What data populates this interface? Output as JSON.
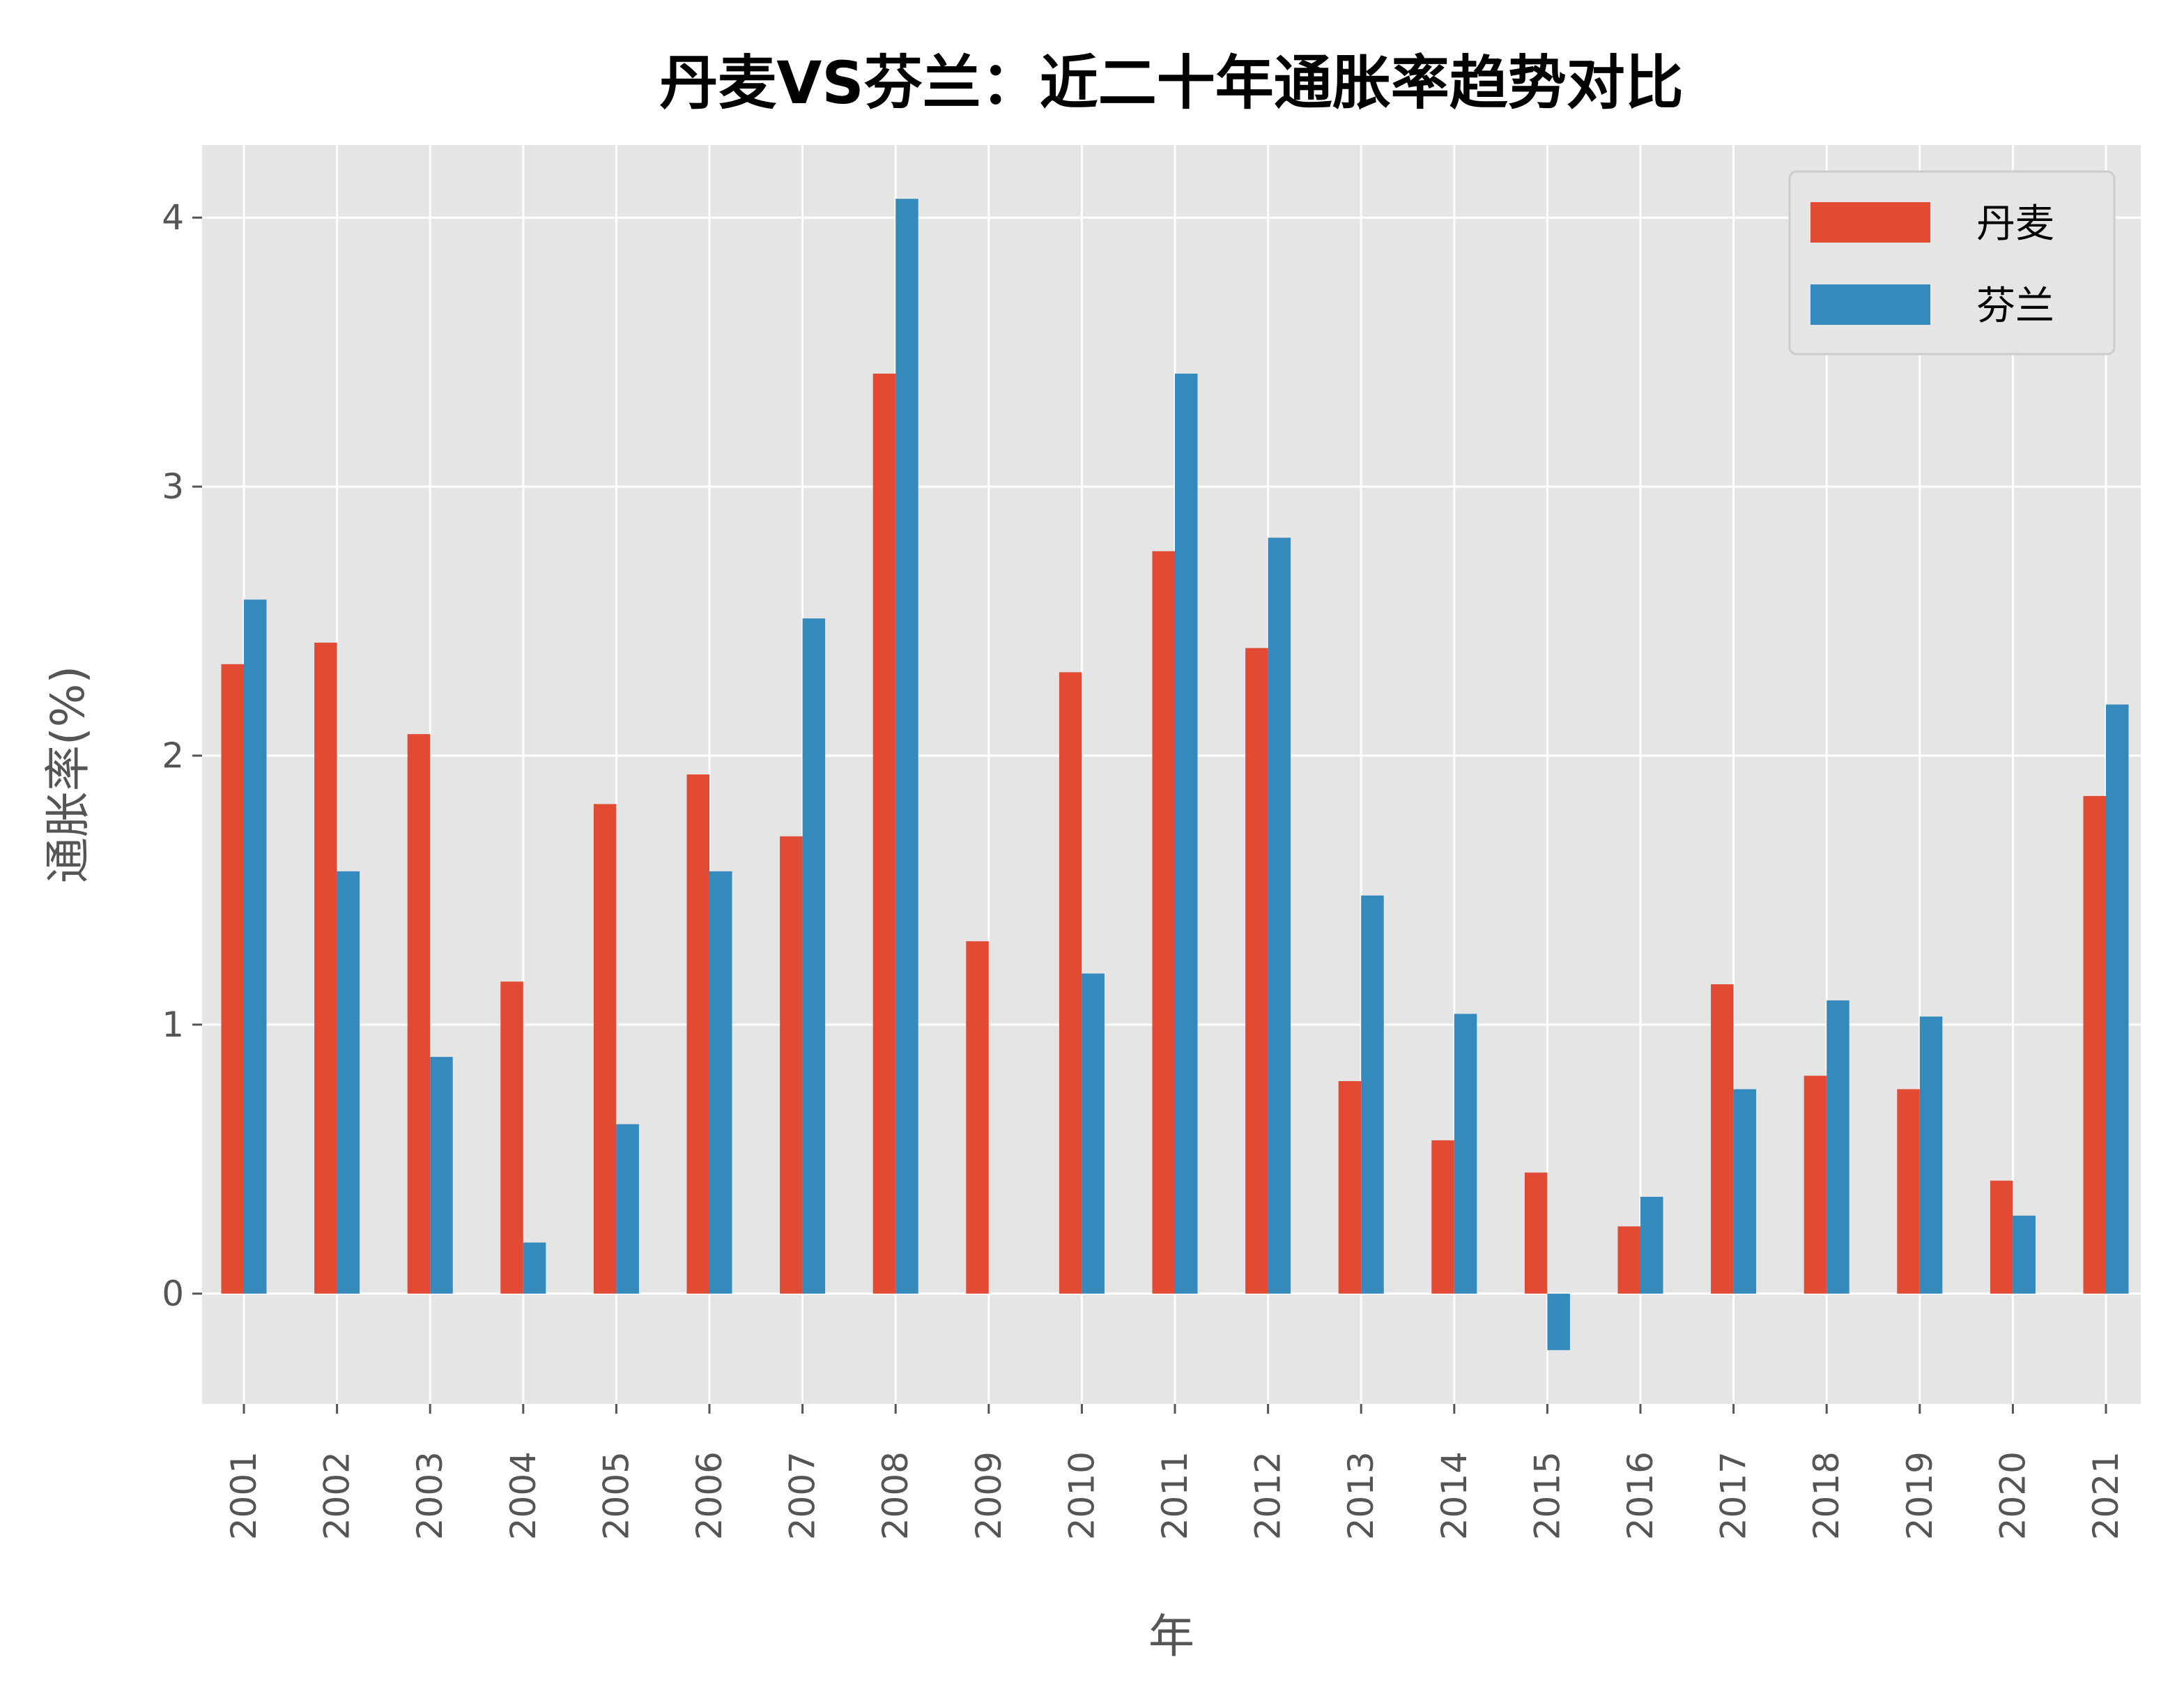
{
  "chart_data": {
    "type": "bar",
    "title": "丹麦VS芬兰：近二十年通胀率趋势对比",
    "xlabel": "年",
    "ylabel": "通胀率(%)",
    "categories": [
      "2001",
      "2002",
      "2003",
      "2004",
      "2005",
      "2006",
      "2007",
      "2008",
      "2009",
      "2010",
      "2011",
      "2012",
      "2013",
      "2014",
      "2015",
      "2016",
      "2017",
      "2018",
      "2019",
      "2020",
      "2021"
    ],
    "series": [
      {
        "name": "丹麦",
        "color": "#E24A33",
        "values": [
          2.34,
          2.42,
          2.08,
          1.16,
          1.82,
          1.93,
          1.7,
          3.42,
          1.31,
          2.31,
          2.76,
          2.4,
          0.79,
          0.57,
          0.45,
          0.25,
          1.15,
          0.81,
          0.76,
          0.42,
          1.85
        ]
      },
      {
        "name": "芬兰",
        "color": "#348ABD",
        "values": [
          2.58,
          1.57,
          0.88,
          0.19,
          0.63,
          1.57,
          2.51,
          4.07,
          0.0,
          1.19,
          3.42,
          2.81,
          1.48,
          1.04,
          -0.21,
          0.36,
          0.76,
          1.09,
          1.03,
          0.29,
          2.19
        ]
      }
    ],
    "yticks": [
      "0",
      "1",
      "2",
      "3",
      "4"
    ],
    "ylim": [
      -0.41,
      4.27
    ],
    "grid": true,
    "background": "#E5E5E5",
    "legend_position": "top-right"
  }
}
